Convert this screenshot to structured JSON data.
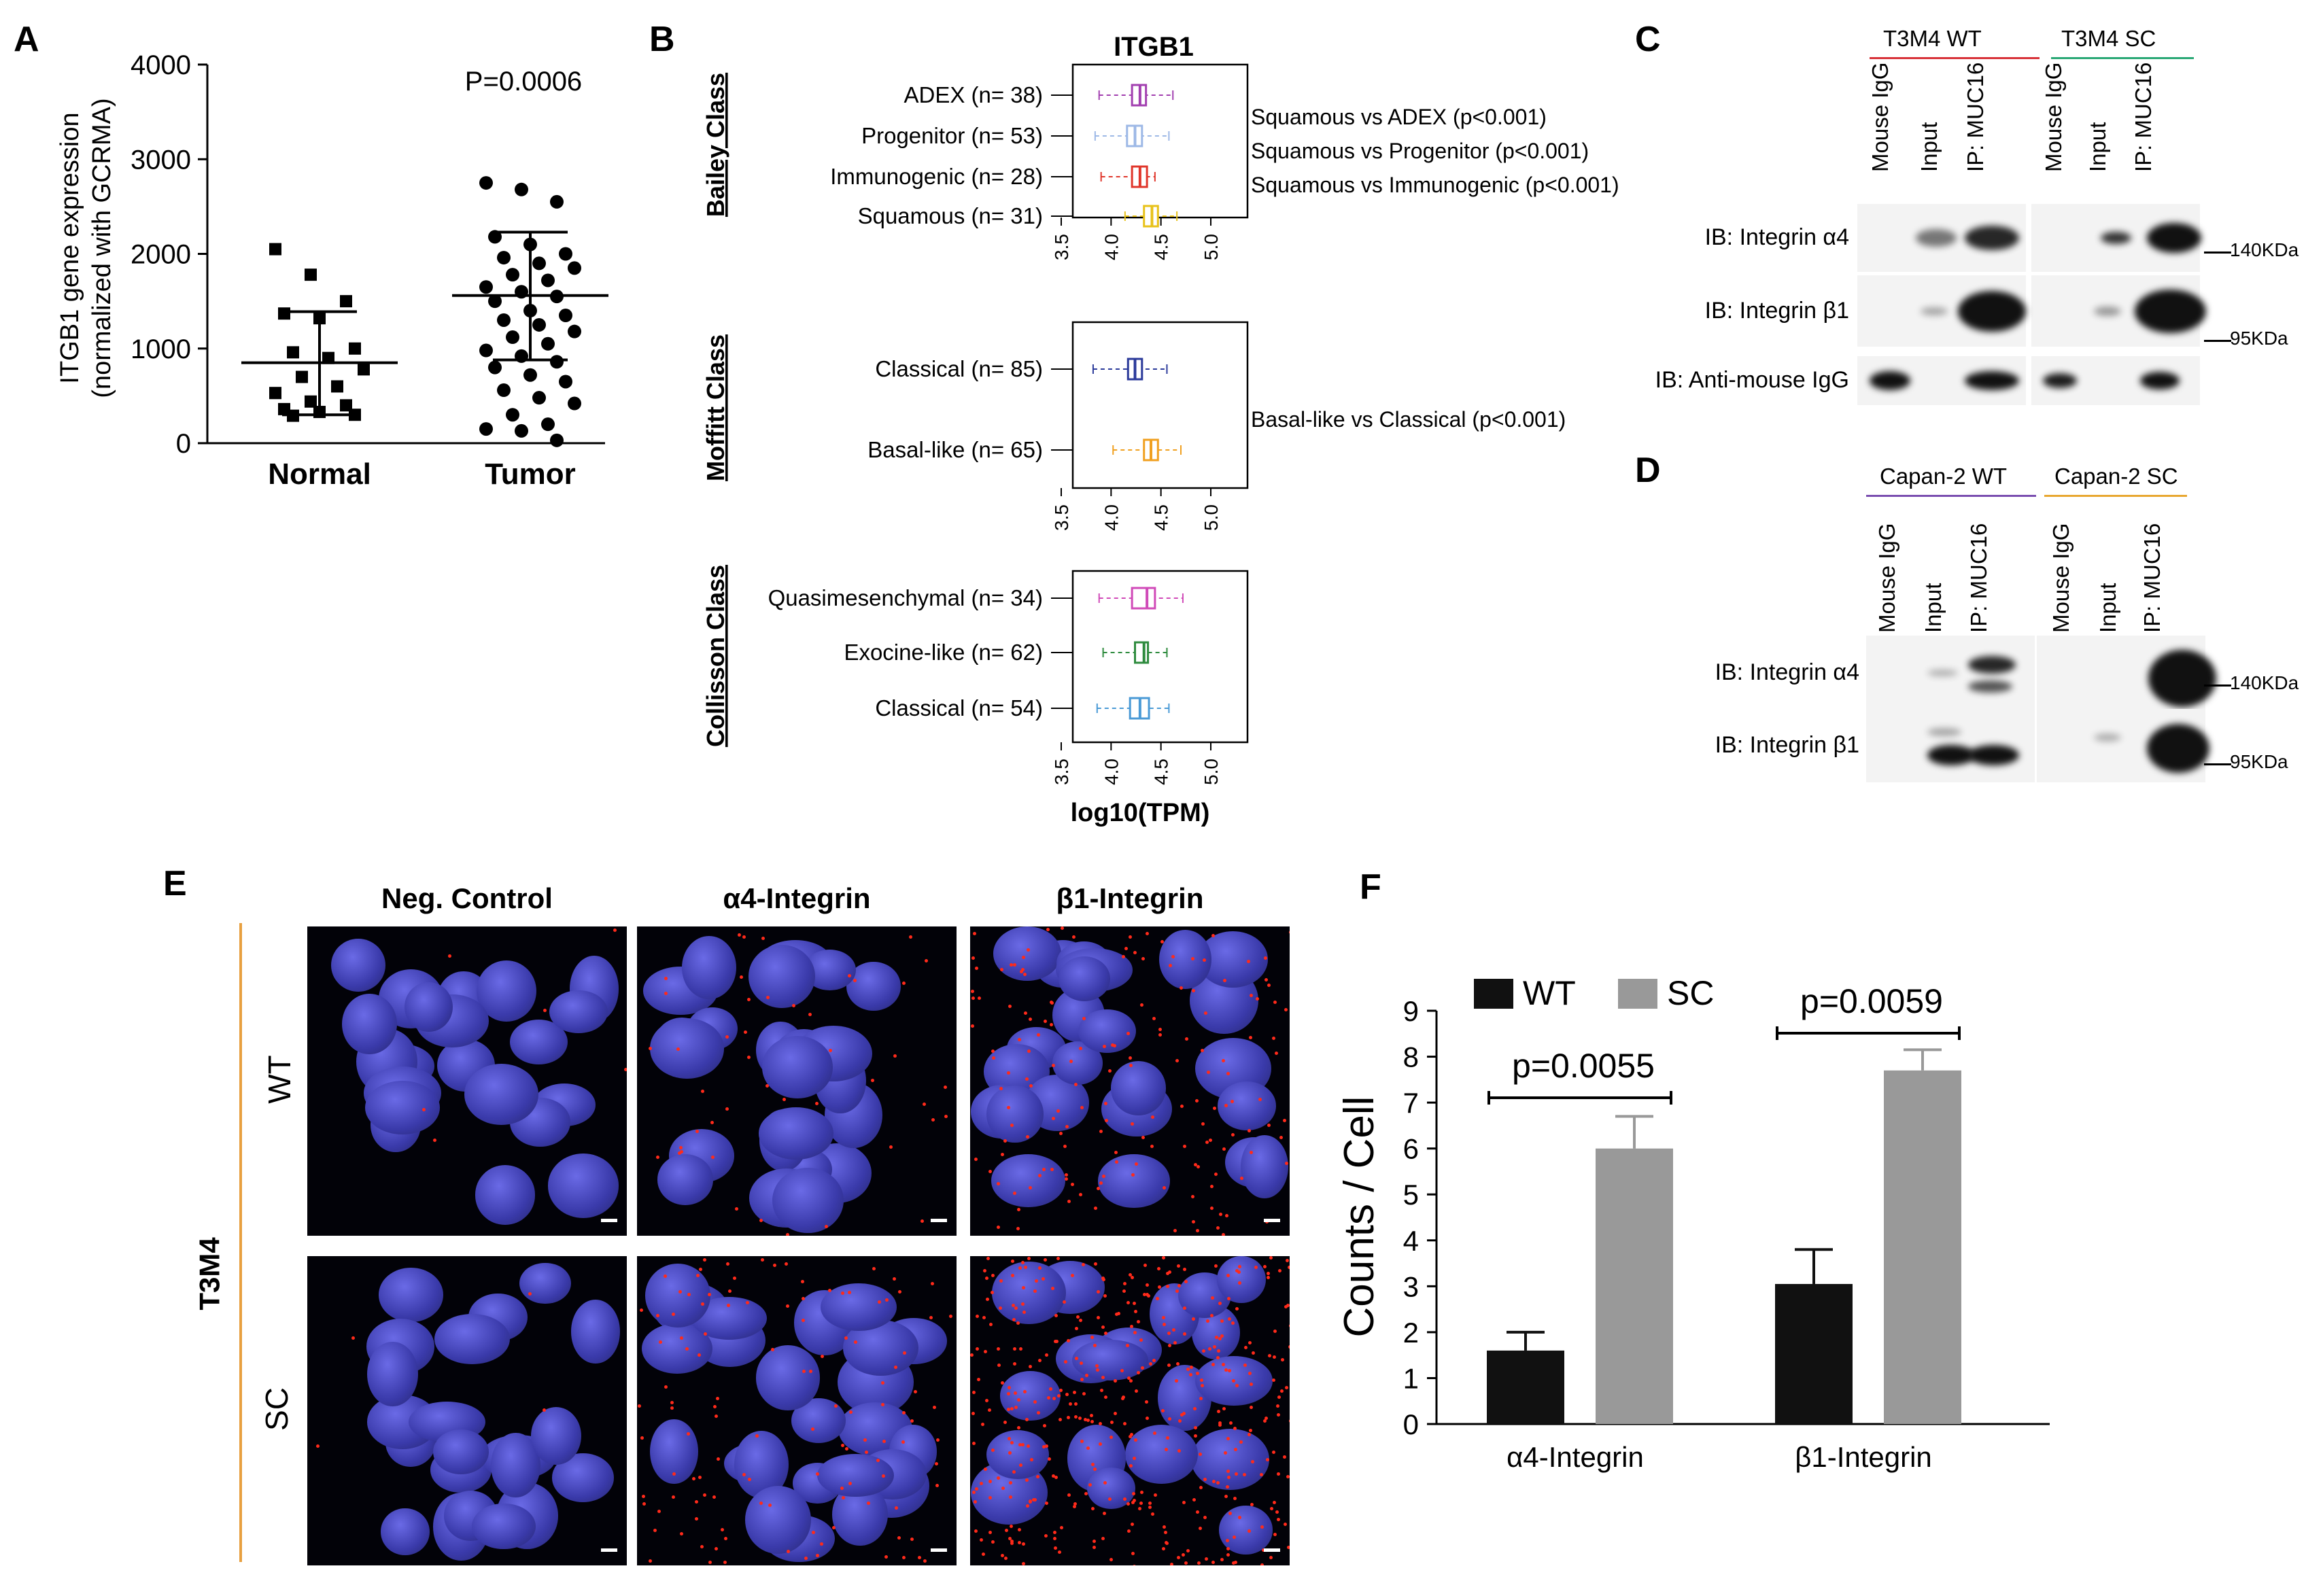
{
  "panels": {
    "a": "A",
    "b": "B",
    "c": "C",
    "d": "D",
    "e": "E",
    "f": "F"
  },
  "panel_a": {
    "ylabel_line1": "ITGB1 gene expression",
    "ylabel_line2": "(normalized with GCRMA)",
    "yticks": [
      "0",
      "1000",
      "2000",
      "3000",
      "4000"
    ],
    "categories": [
      "Normal",
      "Tumor"
    ],
    "pvalue": "P=0.0006"
  },
  "panel_b": {
    "title": "ITGB1",
    "xlabel": "log10(TPM)",
    "xticks": [
      "3.5",
      "4.0",
      "4.5",
      "5.0"
    ],
    "groups": [
      {
        "class_label": "Bailey Class",
        "rows": [
          {
            "label": "ADEX (n= 38)",
            "color": "#a23fb0"
          },
          {
            "label": "Progenitor (n= 53)",
            "color": "#9db8e6"
          },
          {
            "label": "Immunogenic (n= 28)",
            "color": "#e0362b"
          },
          {
            "label": "Squamous (n= 31)",
            "color": "#e8c21a"
          }
        ],
        "comparisons": [
          "Squamous vs ADEX (p<0.001)",
          "Squamous vs Progenitor (p<0.001)",
          "Squamous vs Immunogenic (p<0.001)"
        ]
      },
      {
        "class_label": "Moffitt Class",
        "rows": [
          {
            "label": "Classical (n= 85)",
            "color": "#2b3a9a"
          },
          {
            "label": "Basal-like (n= 65)",
            "color": "#f0a020"
          }
        ],
        "comparisons": [
          "Basal-like vs Classical (p<0.001)"
        ]
      },
      {
        "class_label": "Collisson Class",
        "rows": [
          {
            "label": "Quasimesenchymal (n= 34)",
            "color": "#d04ab8"
          },
          {
            "label": "Exocine-like (n= 62)",
            "color": "#2e8b3e"
          },
          {
            "label": "Classical (n= 54)",
            "color": "#4a9ad6"
          }
        ],
        "comparisons": []
      }
    ]
  },
  "panel_c": {
    "group1": "T3M4 WT",
    "group2": "T3M4 SC",
    "group1_color": "#d8333a",
    "group2_color": "#2aa876",
    "lanes": [
      "Mouse IgG",
      "Input",
      "IP: MUC16"
    ],
    "rows": [
      "IB: Integrin α4",
      "IB: Integrin β1",
      "IB: Anti-mouse IgG"
    ],
    "markers": [
      "140KDa",
      "95KDa"
    ]
  },
  "panel_d": {
    "group1": "Capan-2 WT",
    "group2": "Capan-2 SC",
    "group1_color": "#7b4fb0",
    "group2_color": "#e8a832",
    "lanes": [
      "Mouse IgG",
      "Input",
      "IP: MUC16"
    ],
    "rows": [
      "IB: Integrin α4",
      "IB: Integrin β1"
    ],
    "markers": [
      "140KDa",
      "95KDa"
    ]
  },
  "panel_e": {
    "columns": [
      "Neg. Control",
      "α4-Integrin",
      "β1-Integrin"
    ],
    "rows": [
      "WT",
      "SC"
    ],
    "cell_line": "T3M4",
    "accent_color": "#e8a040"
  },
  "chart_data": [
    {
      "type": "scatter",
      "panel": "A",
      "ylabel": "ITGB1 gene expression (normalized with GCRMA)",
      "ylim": [
        0,
        4000
      ],
      "categories": [
        "Normal",
        "Tumor"
      ],
      "annotation": "P=0.0006",
      "series": [
        {
          "category": "Normal",
          "mean": 850,
          "sd_low": 300,
          "sd_high": 1390,
          "values": [
            2050,
            1780,
            1500,
            1370,
            1320,
            1000,
            960,
            900,
            780,
            700,
            600,
            530,
            440,
            400,
            360,
            330,
            300,
            290
          ]
        },
        {
          "category": "Tumor",
          "mean": 1560,
          "sd_low": 880,
          "sd_high": 2230,
          "values": [
            2750,
            2680,
            2550,
            2180,
            2100,
            2000,
            1960,
            1900,
            1850,
            1780,
            1720,
            1650,
            1600,
            1550,
            1500,
            1400,
            1350,
            1300,
            1250,
            1180,
            1120,
            1050,
            980,
            920,
            860,
            800,
            720,
            650,
            560,
            480,
            420,
            300,
            200,
            150,
            130,
            30
          ]
        }
      ]
    },
    {
      "type": "box",
      "panel": "B",
      "title": "ITGB1",
      "xlabel": "log10(TPM)",
      "xlim": [
        3.5,
        5.0
      ],
      "groups": [
        {
          "class": "Bailey Class",
          "boxes": [
            {
              "name": "ADEX (n= 38)",
              "min": 3.88,
              "q1": 4.21,
              "median": 4.29,
              "q3": 4.35,
              "max": 4.62
            },
            {
              "name": "Progenitor (n= 53)",
              "min": 3.84,
              "q1": 4.16,
              "median": 4.24,
              "q3": 4.31,
              "max": 4.58
            },
            {
              "name": "Immunogenic (n= 28)",
              "min": 3.9,
              "q1": 4.21,
              "median": 4.29,
              "q3": 4.36,
              "max": 4.44
            },
            {
              "name": "Squamous (n= 31)",
              "min": 4.14,
              "q1": 4.33,
              "median": 4.41,
              "q3": 4.47,
              "max": 4.66
            }
          ]
        },
        {
          "class": "Moffitt Class",
          "boxes": [
            {
              "name": "Classical (n= 85)",
              "min": 3.82,
              "q1": 4.17,
              "median": 4.24,
              "q3": 4.31,
              "max": 4.56
            },
            {
              "name": "Basal-like (n= 65)",
              "min": 4.02,
              "q1": 4.33,
              "median": 4.4,
              "q3": 4.47,
              "max": 4.7
            }
          ]
        },
        {
          "class": "Collisson Class",
          "boxes": [
            {
              "name": "Quasimesenchymal (n= 34)",
              "min": 3.88,
              "q1": 4.21,
              "median": 4.36,
              "q3": 4.44,
              "max": 4.72
            },
            {
              "name": "Exocine-like (n= 62)",
              "min": 3.92,
              "q1": 4.24,
              "median": 4.33,
              "q3": 4.37,
              "max": 4.56
            },
            {
              "name": "Classical (n= 54)",
              "min": 3.86,
              "q1": 4.19,
              "median": 4.29,
              "q3": 4.38,
              "max": 4.58
            }
          ]
        }
      ]
    },
    {
      "type": "bar",
      "panel": "F",
      "ylabel": "Counts / Cell",
      "ylim": [
        0,
        9
      ],
      "yticks": [
        "0",
        "1",
        "2",
        "3",
        "4",
        "5",
        "6",
        "7",
        "8",
        "9"
      ],
      "categories": [
        "α4-Integrin",
        "β1-Integrin"
      ],
      "legend_position": "top-left",
      "series": [
        {
          "name": "WT",
          "color": "#111111",
          "values": [
            1.6,
            3.05
          ],
          "errors": [
            0.4,
            0.75
          ]
        },
        {
          "name": "SC",
          "color": "#999999",
          "values": [
            6.0,
            7.7
          ],
          "errors": [
            0.7,
            0.45
          ]
        }
      ],
      "annotations": [
        "p=0.0055",
        "p=0.0059"
      ]
    }
  ]
}
